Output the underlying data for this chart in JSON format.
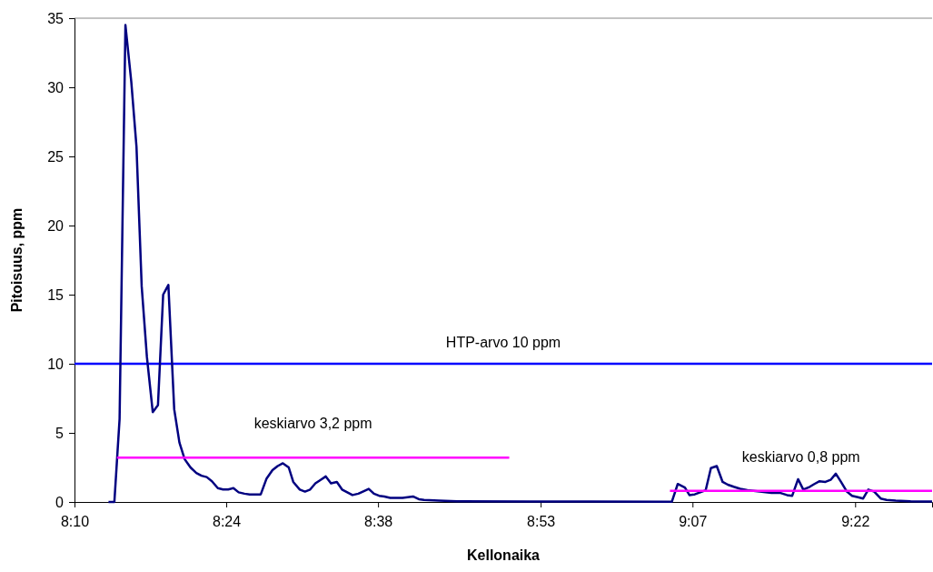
{
  "chart_data": {
    "type": "line",
    "xlabel": "Kellonaika",
    "ylabel": "Pitoisuus, ppm",
    "xlim": [
      8.1667,
      9.485
    ],
    "ylim": [
      0,
      35
    ],
    "xticks": [
      {
        "value": 8.1667,
        "label": "8:10"
      },
      {
        "value": 8.4,
        "label": "8:24"
      },
      {
        "value": 8.6333,
        "label": "8:38"
      },
      {
        "value": 8.8833,
        "label": "8:53"
      },
      {
        "value": 9.1167,
        "label": "9:07"
      },
      {
        "value": 9.3667,
        "label": "9:22"
      }
    ],
    "yticks": [
      0,
      5,
      10,
      15,
      20,
      25,
      30,
      35
    ],
    "grid": false,
    "marker": "none",
    "line_style": "solid",
    "series": [
      {
        "color": "#000080",
        "x": [
          8.219,
          8.228,
          8.236,
          8.245,
          8.254,
          8.262,
          8.27,
          8.278,
          8.287,
          8.295,
          8.303,
          8.311,
          8.32,
          8.328,
          8.336,
          8.345,
          8.354,
          8.362,
          8.37,
          8.378,
          8.387,
          8.395,
          8.403,
          8.411,
          8.419,
          8.428,
          8.436,
          8.453,
          8.462,
          8.471,
          8.479,
          8.487,
          8.496,
          8.503,
          8.513,
          8.521,
          8.529,
          8.537,
          8.545,
          8.553,
          8.561,
          8.57,
          8.578,
          8.586,
          8.594,
          8.603,
          8.61,
          8.619,
          8.627,
          8.635,
          8.643,
          8.652,
          8.662,
          8.671,
          8.679,
          8.687,
          8.696,
          8.704,
          8.727,
          8.755,
          8.866,
          8.959,
          9.085,
          9.094,
          9.105,
          9.112,
          9.12,
          9.137,
          9.145,
          9.154,
          9.163,
          9.171,
          9.18,
          9.19,
          9.201,
          9.22,
          9.238,
          9.252,
          9.262,
          9.27,
          9.279,
          9.287,
          9.297,
          9.304,
          9.312,
          9.321,
          9.329,
          9.337,
          9.345,
          9.354,
          9.362,
          9.371,
          9.379,
          9.387,
          9.396,
          9.406,
          9.415,
          9.429,
          9.452,
          9.485
        ],
        "values": [
          0,
          0,
          6.0,
          34.5,
          30.4,
          25.7,
          15.6,
          10.5,
          6.5,
          7.0,
          15.0,
          15.7,
          6.7,
          4.3,
          3.1,
          2.5,
          2.1,
          1.9,
          1.8,
          1.5,
          1.0,
          0.9,
          0.9,
          1.0,
          0.7,
          0.6,
          0.55,
          0.55,
          1.7,
          2.3,
          2.6,
          2.8,
          2.5,
          1.45,
          0.9,
          0.75,
          0.9,
          1.35,
          1.6,
          1.85,
          1.35,
          1.45,
          0.9,
          0.7,
          0.5,
          0.6,
          0.75,
          0.95,
          0.6,
          0.45,
          0.4,
          0.3,
          0.3,
          0.3,
          0.35,
          0.4,
          0.2,
          0.15,
          0.1,
          0.05,
          0.03,
          0.03,
          0.02,
          1.3,
          1.05,
          0.5,
          0.55,
          0.85,
          2.45,
          2.6,
          1.45,
          1.25,
          1.1,
          0.95,
          0.85,
          0.75,
          0.65,
          0.65,
          0.5,
          0.45,
          1.65,
          0.9,
          1.1,
          1.3,
          1.5,
          1.45,
          1.6,
          2.05,
          1.45,
          0.75,
          0.45,
          0.35,
          0.25,
          0.9,
          0.75,
          0.25,
          0.15,
          0.1,
          0.05,
          0.03
        ]
      },
      {
        "type": "line",
        "name": "keskiarvo 3,2 ppm",
        "color": "#ff00ff",
        "x": [
          8.232,
          8.835
        ],
        "values": [
          3.2,
          3.2
        ]
      },
      {
        "type": "line",
        "name": "keskiarvo 0,8 ppm",
        "color": "#ff00ff",
        "x": [
          9.082,
          9.485
        ],
        "values": [
          0.8,
          0.8
        ]
      }
    ],
    "ref_lines": [
      {
        "axis": "y",
        "value": 10,
        "label": "HTP-arvo 10 ppm",
        "color": "#0000ff"
      }
    ]
  }
}
